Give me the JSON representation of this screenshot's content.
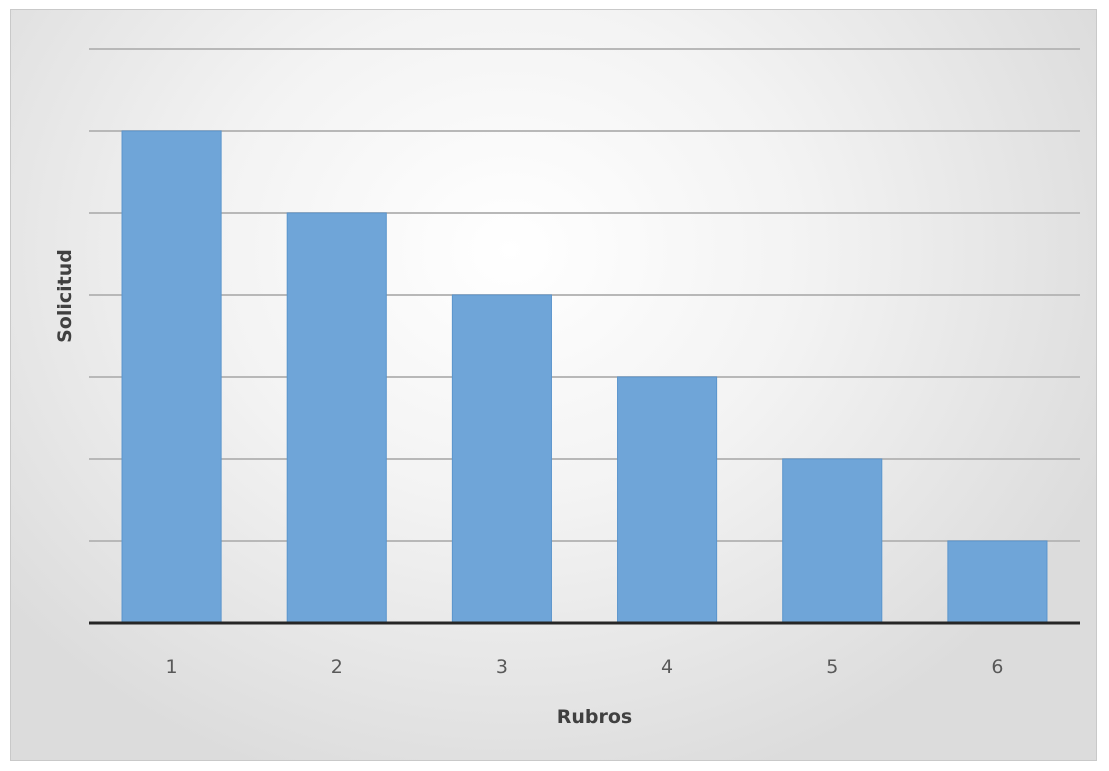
{
  "chart_data": {
    "type": "bar",
    "categories": [
      "1",
      "2",
      "3",
      "4",
      "5",
      "6"
    ],
    "values": [
      6,
      5,
      4,
      3,
      2,
      1
    ],
    "title": "",
    "xlabel": "Rubros",
    "ylabel": "Solicitud",
    "ylim": [
      0,
      7
    ],
    "grid": true,
    "legend": "none",
    "colors": {
      "bar": "#6fa5d8",
      "bar_edge": "#5b95cc",
      "grid": "#b8b8b8",
      "axis": "#262626"
    }
  }
}
